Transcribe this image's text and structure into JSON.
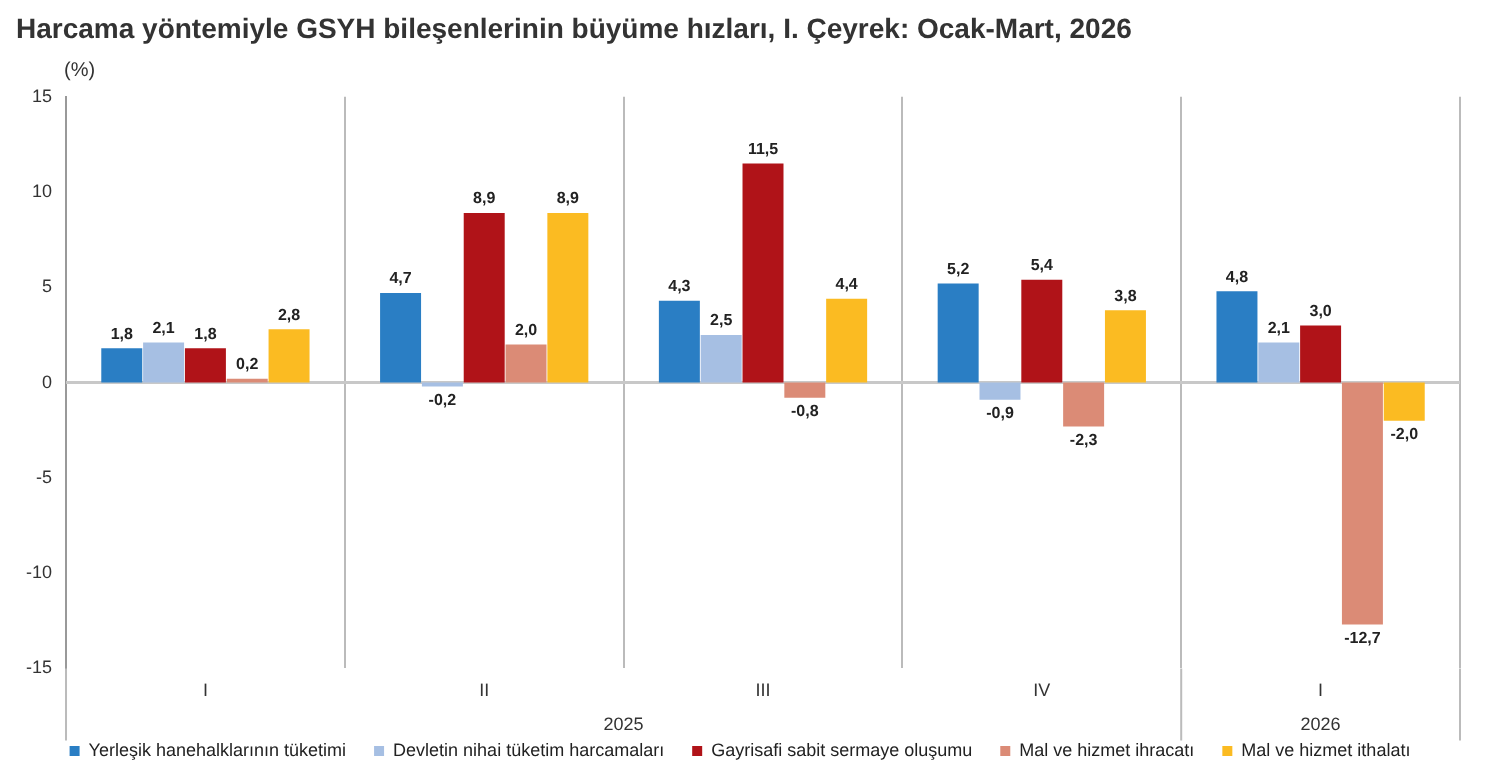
{
  "chart_data": {
    "type": "bar",
    "title": "Harcama yöntemiyle GSYH bileşenlerinin büyüme hızları, I. Çeyrek: Ocak-Mart, 2026",
    "ylabel": "(%)",
    "categories": [
      "I",
      "II",
      "III",
      "IV",
      "I"
    ],
    "series": [
      {
        "name": "Yerleşik hanehalklarının tüketimi",
        "color": "#2a7ec4",
        "values": [
          1.8,
          4.7,
          4.3,
          5.2,
          4.8
        ],
        "value_labels": [
          "1,8",
          "4,7",
          "4,3",
          "5,2",
          "4,8"
        ]
      },
      {
        "name": "Devletin nihai tüketim harcamaları",
        "color": "#a6bfe3",
        "values": [
          2.1,
          -0.2,
          2.5,
          -0.9,
          2.1
        ],
        "value_labels": [
          "2,1",
          "-0,2",
          "2,5",
          "-0,9",
          "2,1"
        ]
      },
      {
        "name": "Gayrisafi sabit sermaye oluşumu",
        "color": "#b01318",
        "values": [
          1.8,
          8.9,
          11.5,
          5.4,
          3.0
        ],
        "value_labels": [
          "1,8",
          "8,9",
          "11,5",
          "5,4",
          "3,0"
        ]
      },
      {
        "name": "Mal ve hizmet ihracatı",
        "color": "#db8b76",
        "values": [
          0.2,
          2.0,
          -0.8,
          -2.3,
          -12.7
        ],
        "value_labels": [
          "0,2",
          "2,0",
          "-0,8",
          "-2,3",
          "-12,7"
        ]
      },
      {
        "name": "Mal ve hizmet ithalatı",
        "color": "#fbbb22",
        "values": [
          2.8,
          8.9,
          4.4,
          3.8,
          -2.0
        ],
        "value_labels": [
          "2,8",
          "8,9",
          "4,4",
          "3,8",
          "-2,0"
        ]
      }
    ],
    "ylim": [
      -15,
      15
    ],
    "yticks": [
      -15,
      -10,
      -5,
      0,
      5,
      10,
      15
    ],
    "grid": "x",
    "legend": "bottom",
    "annotations": [
      "2025",
      "2026"
    ]
  }
}
